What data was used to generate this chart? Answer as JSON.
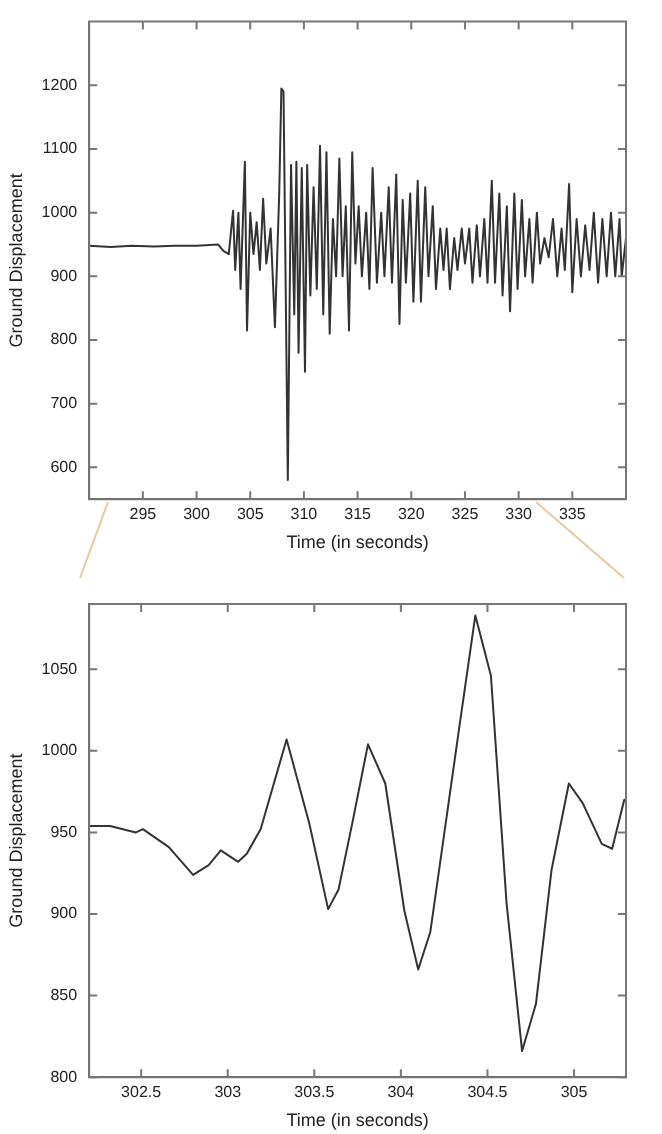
{
  "chart_data": [
    {
      "type": "line",
      "xlabel": "Time (in seconds)",
      "ylabel": "Ground Displacement",
      "xlim": [
        290,
        340
      ],
      "xticks": [
        295,
        300,
        305,
        310,
        315,
        320,
        325,
        330,
        335
      ],
      "ylim": [
        550,
        1300
      ],
      "yticks": [
        600,
        700,
        800,
        900,
        1000,
        1100,
        1200
      ],
      "grid": false,
      "legend": false,
      "marker": "none",
      "line_style": "solid",
      "color": "#333333",
      "x": [
        290,
        292,
        294,
        296,
        298,
        300,
        302,
        302.5,
        303,
        303.4,
        303.6,
        303.9,
        304.1,
        304.5,
        304.7,
        305,
        305.3,
        305.6,
        305.9,
        306.2,
        306.5,
        306.9,
        307.3,
        307.7,
        307.9,
        308.1,
        308.5,
        308.8,
        309.1,
        309.3,
        309.5,
        309.8,
        310.1,
        310.3,
        310.6,
        310.9,
        311.2,
        311.5,
        311.8,
        312.1,
        312.4,
        312.7,
        313,
        313.3,
        313.6,
        313.9,
        314.2,
        314.5,
        314.8,
        315.1,
        315.4,
        315.8,
        316.1,
        316.4,
        316.8,
        317.2,
        317.5,
        317.9,
        318.2,
        318.6,
        318.9,
        319.2,
        319.5,
        319.9,
        320.2,
        320.6,
        320.9,
        321.3,
        321.6,
        322,
        322.3,
        322.7,
        323,
        323.3,
        323.6,
        324,
        324.3,
        324.7,
        325,
        325.4,
        325.7,
        326.1,
        326.4,
        326.8,
        327.1,
        327.5,
        327.8,
        328.2,
        328.5,
        328.9,
        329.2,
        329.6,
        329.9,
        330.3,
        330.6,
        331,
        331.3,
        331.7,
        332,
        332.4,
        332.8,
        333.2,
        333.6,
        334,
        334.3,
        334.7,
        335,
        335.4,
        335.8,
        336.2,
        336.6,
        337,
        337.4,
        337.8,
        338.2,
        338.6,
        339,
        339.4,
        339.6,
        340
      ],
      "values": [
        948,
        946,
        948,
        947,
        948,
        948,
        950,
        940,
        935,
        1003,
        910,
        1000,
        880,
        1080,
        815,
        1000,
        935,
        985,
        910,
        1022,
        920,
        975,
        820,
        1030,
        1195,
        1190,
        580,
        1075,
        840,
        1080,
        780,
        1070,
        750,
        1075,
        870,
        1040,
        880,
        1105,
        840,
        1095,
        810,
        990,
        900,
        1085,
        900,
        1010,
        815,
        1095,
        920,
        1010,
        900,
        1000,
        880,
        1070,
        890,
        1000,
        900,
        1040,
        890,
        1060,
        825,
        1020,
        890,
        1030,
        860,
        1050,
        860,
        1040,
        900,
        1010,
        880,
        975,
        910,
        975,
        880,
        960,
        910,
        975,
        920,
        975,
        890,
        980,
        900,
        990,
        890,
        1050,
        890,
        1030,
        870,
        1010,
        845,
        1030,
        880,
        1020,
        900,
        990,
        890,
        1000,
        920,
        960,
        930,
        990,
        900,
        975,
        910,
        1045,
        875,
        990,
        900,
        980,
        910,
        1000,
        890,
        990,
        900,
        1000,
        900,
        990,
        900,
        960
      ]
    },
    {
      "type": "line",
      "xlabel": "Time (in seconds)",
      "ylabel": "Ground Displacement",
      "xlim": [
        302.2,
        305.3
      ],
      "xticks": [
        302.5,
        303,
        303.5,
        304,
        304.5,
        305
      ],
      "ylim": [
        800,
        1090
      ],
      "yticks": [
        800,
        850,
        900,
        950,
        1000,
        1050
      ],
      "grid": false,
      "legend": false,
      "marker": "none",
      "line_style": "solid",
      "color": "#333333",
      "x": [
        302.2,
        302.32,
        302.47,
        302.51,
        302.66,
        302.8,
        302.89,
        302.96,
        303.06,
        303.11,
        303.19,
        303.34,
        303.47,
        303.58,
        303.64,
        303.72,
        303.81,
        303.91,
        304.02,
        304.1,
        304.17,
        304.33,
        304.43,
        304.52,
        304.61,
        304.7,
        304.78,
        304.87,
        304.97,
        305.05,
        305.16,
        305.22,
        305.29
      ],
      "values": [
        954,
        954,
        950,
        952,
        941,
        924,
        930,
        939,
        932,
        937,
        952,
        1007,
        956,
        903,
        915,
        956,
        1004,
        980,
        902,
        866,
        889,
        1009,
        1083,
        1046,
        907,
        816,
        845,
        927,
        980,
        968,
        943,
        940,
        970
      ]
    }
  ]
}
